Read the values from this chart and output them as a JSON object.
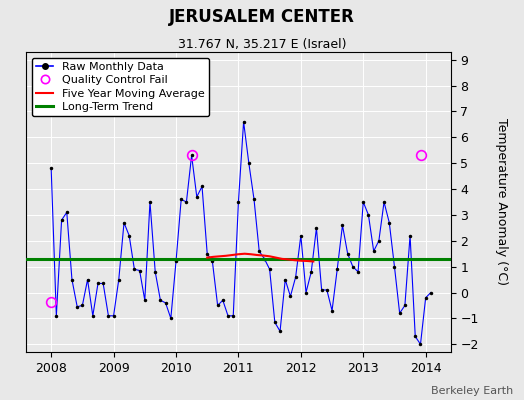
{
  "title": "JERUSALEM CENTER",
  "subtitle": "31.767 N, 35.217 E (Israel)",
  "ylabel": "Temperature Anomaly (°C)",
  "ylim": [
    -2.3,
    9.3
  ],
  "yticks": [
    -2,
    -1,
    0,
    1,
    2,
    3,
    4,
    5,
    6,
    7,
    8,
    9
  ],
  "xlim": [
    2007.6,
    2014.4
  ],
  "background_color": "#e8e8e8",
  "long_term_trend": 1.3,
  "qc_fail_points": [
    [
      2008.0,
      -0.35
    ],
    [
      2010.25,
      5.3
    ],
    [
      2013.92,
      5.3
    ]
  ],
  "raw_data": [
    2008.0,
    4.8,
    2008.083,
    -0.9,
    2008.167,
    2.8,
    2008.25,
    3.1,
    2008.333,
    0.5,
    2008.417,
    -0.55,
    2008.5,
    -0.5,
    2008.583,
    0.5,
    2008.667,
    -0.9,
    2008.75,
    0.35,
    2008.833,
    0.35,
    2008.917,
    -0.9,
    2009.0,
    -0.9,
    2009.083,
    0.5,
    2009.167,
    2.7,
    2009.25,
    2.2,
    2009.333,
    0.9,
    2009.417,
    0.85,
    2009.5,
    -0.3,
    2009.583,
    3.5,
    2009.667,
    0.8,
    2009.75,
    -0.3,
    2009.833,
    -0.4,
    2009.917,
    -1.0,
    2010.0,
    1.2,
    2010.083,
    3.6,
    2010.167,
    3.5,
    2010.25,
    5.3,
    2010.333,
    3.7,
    2010.417,
    4.1,
    2010.5,
    1.5,
    2010.583,
    1.2,
    2010.667,
    -0.5,
    2010.75,
    -0.3,
    2010.833,
    -0.9,
    2010.917,
    -0.9,
    2011.0,
    3.5,
    2011.083,
    6.6,
    2011.167,
    5.0,
    2011.25,
    3.6,
    2011.333,
    1.6,
    2011.417,
    1.3,
    2011.5,
    0.9,
    2011.583,
    -1.15,
    2011.667,
    -1.5,
    2011.75,
    0.5,
    2011.833,
    -0.15,
    2011.917,
    0.6,
    2012.0,
    2.2,
    2012.083,
    0.0,
    2012.167,
    0.8,
    2012.25,
    2.5,
    2012.333,
    0.1,
    2012.417,
    0.1,
    2012.5,
    -0.7,
    2012.583,
    0.9,
    2012.667,
    2.6,
    2012.75,
    1.5,
    2012.833,
    1.0,
    2012.917,
    0.8,
    2013.0,
    3.5,
    2013.083,
    3.0,
    2013.167,
    1.6,
    2013.25,
    2.0,
    2013.333,
    3.5,
    2013.417,
    2.7,
    2013.5,
    1.0,
    2013.583,
    -0.8,
    2013.667,
    -0.5,
    2013.75,
    2.2,
    2013.833,
    -1.7,
    2013.917,
    -2.0,
    2014.0,
    -0.2,
    2014.083,
    0.0
  ],
  "moving_avg": [
    2010.5,
    1.35,
    2010.6,
    1.38,
    2010.7,
    1.4,
    2010.8,
    1.42,
    2010.9,
    1.45,
    2011.0,
    1.48,
    2011.1,
    1.5,
    2011.2,
    1.48,
    2011.3,
    1.45,
    2011.4,
    1.43,
    2011.5,
    1.4,
    2011.6,
    1.35,
    2011.7,
    1.3,
    2011.8,
    1.28,
    2011.9,
    1.25,
    2012.0,
    1.23,
    2012.1,
    1.22,
    2012.2,
    1.2
  ],
  "title_fontsize": 12,
  "subtitle_fontsize": 9,
  "tick_fontsize": 9,
  "ylabel_fontsize": 9,
  "legend_fontsize": 8,
  "berkeley_earth_fontsize": 8
}
